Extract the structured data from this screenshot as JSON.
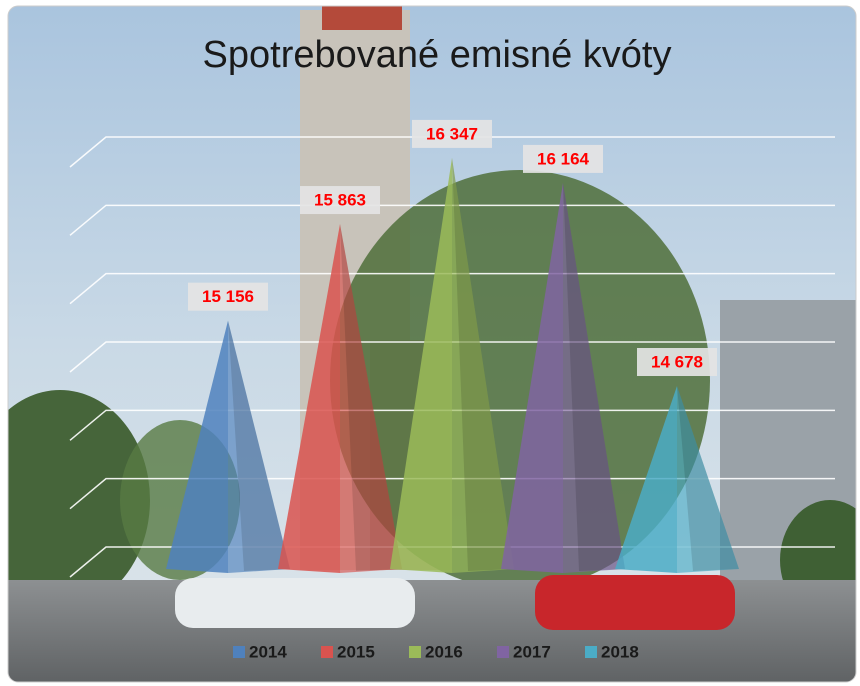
{
  "chart_data": {
    "type": "pyramid",
    "title": "Spotrebované emisné kvóty",
    "categories": [
      "2014",
      "2015",
      "2016",
      "2017",
      "2018"
    ],
    "values": [
      15156,
      15863,
      16347,
      16164,
      14678
    ],
    "value_labels": [
      "15 156",
      "15 863",
      "16 347",
      "16 164",
      "14 678"
    ],
    "colors": [
      "#4f81bd",
      "#d9534f",
      "#9bbb59",
      "#8064a2",
      "#4bacc6"
    ],
    "ylim": [
      13500,
      16500
    ],
    "yticks": [
      13500,
      14000,
      14500,
      15000,
      15500,
      16000,
      16500
    ],
    "grid": true,
    "legend": "bottom"
  }
}
